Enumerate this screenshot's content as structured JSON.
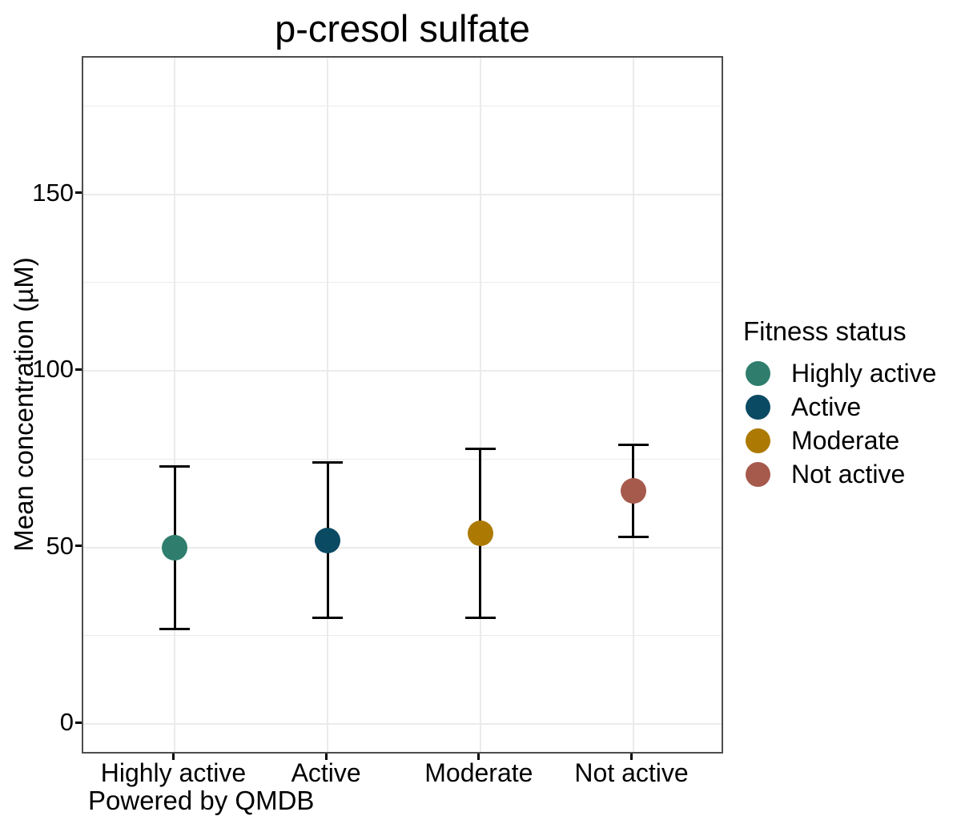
{
  "header": {
    "title": "p-cresol sulfate"
  },
  "y_axis": {
    "title": "Mean concentration (µM)",
    "tick_labels": [
      "0",
      "50",
      "100",
      "150"
    ]
  },
  "x_axis": {
    "tick_labels": [
      "Highly active",
      "Active",
      "Moderate",
      "Not active"
    ]
  },
  "legend": {
    "title": "Fitness status",
    "items": [
      {
        "label": "Highly active",
        "color": "#2F7E6D"
      },
      {
        "label": "Active",
        "color": "#0A4A63"
      },
      {
        "label": "Moderate",
        "color": "#AC7A02"
      },
      {
        "label": "Not active",
        "color": "#A65A4C"
      }
    ]
  },
  "caption": {
    "text": "Powered by QMDB"
  },
  "chart_data": {
    "type": "scatter",
    "variant": "mean-with-error-bars",
    "title": "p-cresol sulfate",
    "xlabel": "",
    "ylabel": "Mean concentration (µM)",
    "categories": [
      "Highly active",
      "Active",
      "Moderate",
      "Not active"
    ],
    "series": [
      {
        "name": "Highly active",
        "mean": 50,
        "lower": 27,
        "upper": 73,
        "color": "#2F7E6D"
      },
      {
        "name": "Active",
        "mean": 52,
        "lower": 30,
        "upper": 74,
        "color": "#0A4A63"
      },
      {
        "name": "Moderate",
        "mean": 54,
        "lower": 30,
        "upper": 78,
        "color": "#AC7A02"
      },
      {
        "name": "Not active",
        "mean": 66,
        "lower": 53,
        "upper": 79,
        "color": "#A65A4C"
      }
    ],
    "y_major_ticks": [
      0,
      50,
      100,
      150
    ],
    "y_minor_gridlines": [
      25,
      75,
      125,
      175
    ],
    "ylim": [
      -8.8,
      188.7
    ],
    "grid": true,
    "legend_title": "Fitness status",
    "legend_position": "right",
    "caption": "Powered by QMDB"
  }
}
